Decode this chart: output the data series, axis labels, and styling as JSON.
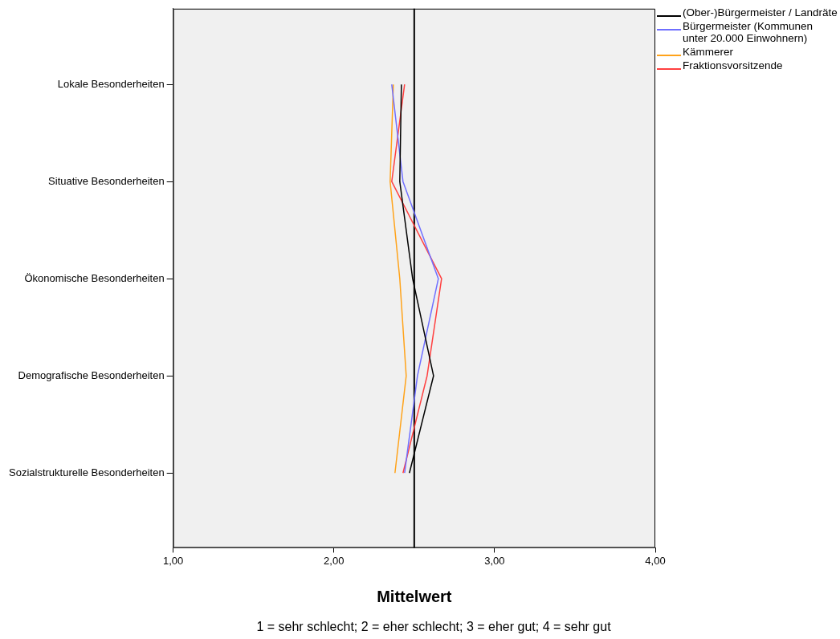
{
  "chart_data": {
    "type": "line",
    "orientation": "horizontal",
    "categories": [
      "Lokale Besonderheiten",
      "Situative Besonderheiten",
      "Ökonomische Besonderheiten",
      "Demografische Besonderheiten",
      "Sozialstrukturelle Besonderheiten"
    ],
    "series": [
      {
        "name": "(Ober-)Bürgermeister / Landräte",
        "color": "#000000",
        "values": [
          2.42,
          2.41,
          2.49,
          2.62,
          2.47
        ]
      },
      {
        "name": "Bürgermeister (Kommunen unter 20.000 Einwohnern)",
        "color": "#6f6fff",
        "values": [
          2.36,
          2.43,
          2.65,
          2.52,
          2.44
        ]
      },
      {
        "name": "Kämmerer",
        "color": "#ffa31a",
        "values": [
          2.37,
          2.35,
          2.41,
          2.45,
          2.38
        ]
      },
      {
        "name": "Fraktionsvorsitzende",
        "color": "#ff4040",
        "values": [
          2.44,
          2.36,
          2.67,
          2.58,
          2.43
        ]
      }
    ],
    "xlim": [
      1,
      4
    ],
    "xticks": [
      {
        "value": 1,
        "label": "1,00"
      },
      {
        "value": 2,
        "label": "2,00"
      },
      {
        "value": 3,
        "label": "3,00"
      },
      {
        "value": 4,
        "label": "4,00"
      }
    ],
    "xlabel": "Mittelwert",
    "ref_lines": [
      {
        "axis": "x",
        "value": 2.5,
        "color": "#000000"
      }
    ],
    "annotations": [
      "1 = sehr schlecht; 2 = eher schlecht; 3 = eher gut; 4 = sehr gut"
    ],
    "legend": "top right",
    "grid": false,
    "marker": "none",
    "line_style": "solid"
  }
}
